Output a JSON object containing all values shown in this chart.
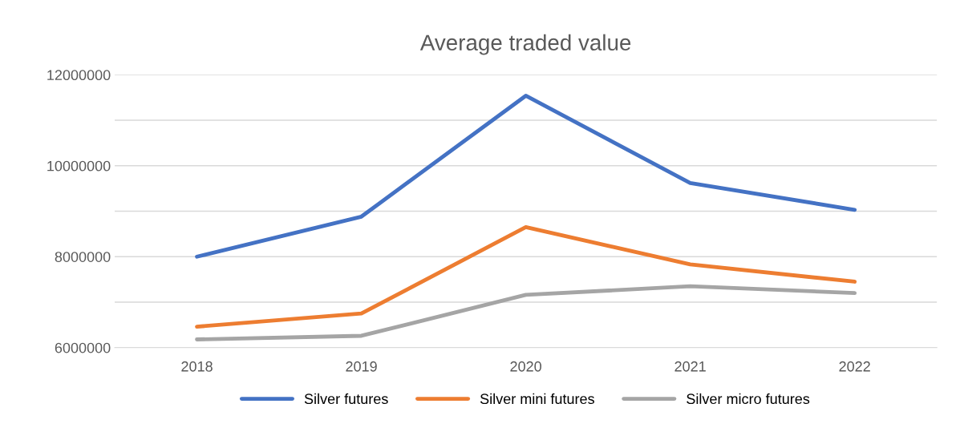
{
  "chart_data": {
    "type": "line",
    "title": "Average traded value",
    "categories": [
      "2018",
      "2019",
      "2020",
      "2021",
      "2022"
    ],
    "series": [
      {
        "name": "Silver futures",
        "color": "#4472c4",
        "values": [
          8000000,
          8880000,
          11540000,
          9620000,
          9030000
        ]
      },
      {
        "name": "Silver mini futures",
        "color": "#ed7d31",
        "values": [
          6460000,
          6750000,
          8650000,
          7830000,
          7450000
        ]
      },
      {
        "name": "Silver micro futures",
        "color": "#a5a5a5",
        "values": [
          6180000,
          6260000,
          7160000,
          7350000,
          7200000
        ]
      }
    ],
    "ylim": [
      6000000,
      12000000
    ],
    "yticks": [
      6000000,
      {
        "value": 7000000,
        "label": null
      },
      8000000,
      {
        "value": 9000000,
        "label": null
      },
      10000000,
      {
        "value": 11000000,
        "label": null
      },
      12000000
    ],
    "grid": "y",
    "legend": "bottom",
    "marker": "none",
    "line_style": "solid"
  }
}
